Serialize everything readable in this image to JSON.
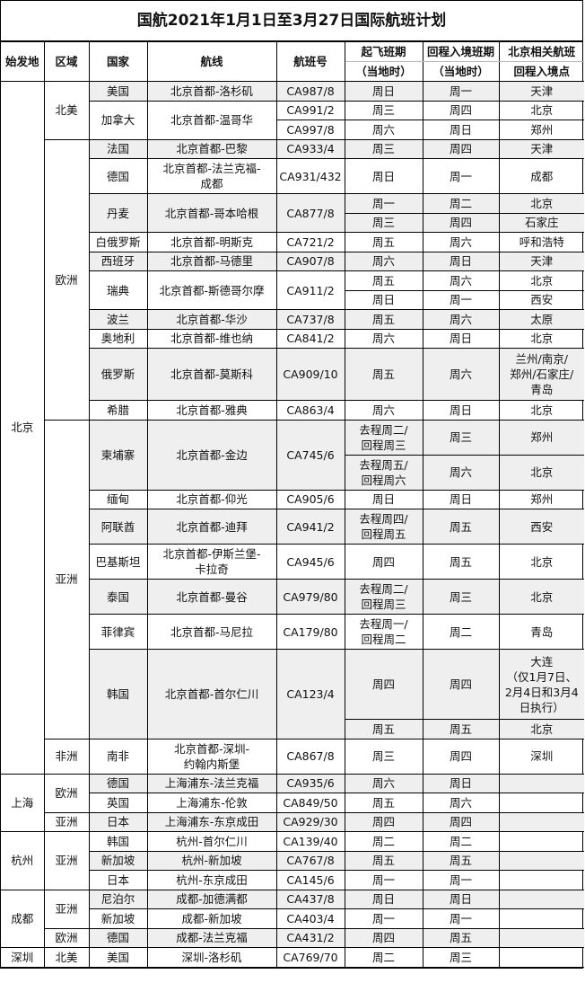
{
  "title": "国航2021年1月1日至3月27日国际航班计划",
  "colors": {
    "shade": "#efefef",
    "border": "#000000"
  },
  "headers": {
    "origin": "始发地",
    "region": "区域",
    "country": "国家",
    "route": "航线",
    "flight": "航班号",
    "depart_top": "起飞班期",
    "depart_bottom": "（当地时）",
    "return_top": "回程入境班期",
    "return_bottom": "（当地时）",
    "entry_top": "北京相关航班",
    "entry_bottom": "回程入境点"
  },
  "origins": [
    {
      "name": "北京",
      "regions": [
        {
          "name": "北美",
          "countries": [
            {
              "country": "美国",
              "route": "北京首都-洛杉矶",
              "flight": "CA987/8",
              "schedules": [
                {
                  "depart": "周日",
                  "return": "周一",
                  "entry": "天津"
                }
              ]
            },
            {
              "country": "加拿大",
              "route": "北京首都-温哥华",
              "schedules": [
                {
                  "flight": "CA991/2",
                  "depart": "周三",
                  "return": "周四",
                  "entry": "北京"
                },
                {
                  "flight": "CA997/8",
                  "depart": "周六",
                  "return": "周日",
                  "entry": "郑州"
                }
              ]
            }
          ]
        },
        {
          "name": "欧洲",
          "countries": [
            {
              "country": "法国",
              "route": "北京首都-巴黎",
              "flight": "CA933/4",
              "schedules": [
                {
                  "depart": "周三",
                  "return": "周四",
                  "entry": "天津"
                }
              ]
            },
            {
              "country": "德国",
              "route": "北京首都-法兰克福-\n成都",
              "flight": "CA931/432",
              "schedules": [
                {
                  "depart": "周日",
                  "return": "周一",
                  "entry": "成都"
                }
              ]
            },
            {
              "country": "丹麦",
              "route": "北京首都-哥本哈根",
              "flight": "CA877/8",
              "schedules": [
                {
                  "depart": "周一",
                  "return": "周二",
                  "entry": "北京"
                },
                {
                  "depart": "周三",
                  "return": "周四",
                  "entry": "石家庄"
                }
              ]
            },
            {
              "country": "白俄罗斯",
              "route": "北京首都-明斯克",
              "flight": "CA721/2",
              "schedules": [
                {
                  "depart": "周五",
                  "return": "周六",
                  "entry": "呼和浩特"
                }
              ]
            },
            {
              "country": "西班牙",
              "route": "北京首都-马德里",
              "flight": "CA907/8",
              "schedules": [
                {
                  "depart": "周六",
                  "return": "周日",
                  "entry": "天津"
                }
              ]
            },
            {
              "country": "瑞典",
              "route": "北京首都-斯德哥尔摩",
              "flight": "CA911/2",
              "schedules": [
                {
                  "depart": "周五",
                  "return": "周六",
                  "entry": "北京"
                },
                {
                  "depart": "周日",
                  "return": "周一",
                  "entry": "西安"
                }
              ]
            },
            {
              "country": "波兰",
              "route": "北京首都-华沙",
              "flight": "CA737/8",
              "schedules": [
                {
                  "depart": "周五",
                  "return": "周六",
                  "entry": "太原"
                }
              ]
            },
            {
              "country": "奥地利",
              "route": "北京首都-维也纳",
              "flight": "CA841/2",
              "schedules": [
                {
                  "depart": "周六",
                  "return": "周日",
                  "entry": "北京"
                }
              ]
            },
            {
              "country": "俄罗斯",
              "route": "北京首都-莫斯科",
              "flight": "CA909/10",
              "schedules": [
                {
                  "depart": "周五",
                  "return": "周六",
                  "entry": "兰州/南京/\n郑州/石家庄/\n青岛"
                }
              ]
            },
            {
              "country": "希腊",
              "route": "北京首都-雅典",
              "flight": "CA863/4",
              "schedules": [
                {
                  "depart": "周六",
                  "return": "周日",
                  "entry": "北京"
                }
              ]
            }
          ]
        },
        {
          "name": "亚洲",
          "countries": [
            {
              "country": "柬埔寨",
              "route": "北京首都-金边",
              "flight": "CA745/6",
              "schedules": [
                {
                  "depart": "去程周二/\n回程周三",
                  "return": "周三",
                  "entry": "郑州"
                },
                {
                  "depart": "去程周五/\n回程周六",
                  "return": "周六",
                  "entry": "北京"
                }
              ]
            },
            {
              "country": "缅甸",
              "route": "北京首都-仰光",
              "flight": "CA905/6",
              "schedules": [
                {
                  "depart": "周日",
                  "return": "周日",
                  "entry": "郑州"
                }
              ]
            },
            {
              "country": "阿联酋",
              "route": "北京首都-迪拜",
              "flight": "CA941/2",
              "schedules": [
                {
                  "depart": "去程周四/\n回程周五",
                  "return": "周五",
                  "entry": "西安"
                }
              ]
            },
            {
              "country": "巴基斯坦",
              "route": "北京首都-伊斯兰堡-\n卡拉奇",
              "flight": "CA945/6",
              "schedules": [
                {
                  "depart": "周四",
                  "return": "周五",
                  "entry": "北京"
                }
              ]
            },
            {
              "country": "泰国",
              "route": "北京首都-曼谷",
              "flight": "CA979/80",
              "schedules": [
                {
                  "depart": "去程周二/\n回程周三",
                  "return": "周三",
                  "entry": "北京"
                }
              ]
            },
            {
              "country": "菲律宾",
              "route": "北京首都-马尼拉",
              "flight": "CA179/80",
              "schedules": [
                {
                  "depart": "去程周一/\n回程周二",
                  "return": "周二",
                  "entry": "青岛"
                }
              ]
            },
            {
              "country": "韩国",
              "route": "北京首都-首尔仁川",
              "flight": "CA123/4",
              "schedules": [
                {
                  "depart": "周四",
                  "return": "周四",
                  "entry": "大连\n（仅1月7日、\n2月4日和3月4\n日执行）"
                },
                {
                  "depart": "周五",
                  "return": "周五",
                  "entry": "北京"
                }
              ]
            }
          ]
        },
        {
          "name": "非洲",
          "countries": [
            {
              "country": "南非",
              "route": "北京首都-深圳-\n约翰内斯堡",
              "flight": "CA867/8",
              "schedules": [
                {
                  "depart": "周三",
                  "return": "周四",
                  "entry": "深圳"
                }
              ]
            }
          ]
        }
      ]
    },
    {
      "name": "上海",
      "regions": [
        {
          "name": "欧洲",
          "countries": [
            {
              "country": "德国",
              "route": "上海浦东-法兰克福",
              "flight": "CA935/6",
              "schedules": [
                {
                  "depart": "周六",
                  "return": "周日",
                  "entry": ""
                }
              ]
            },
            {
              "country": "英国",
              "route": "上海浦东-伦敦",
              "flight": "CA849/50",
              "schedules": [
                {
                  "depart": "周五",
                  "return": "周六",
                  "entry": ""
                }
              ]
            }
          ]
        },
        {
          "name": "亚洲",
          "countries": [
            {
              "country": "日本",
              "route": "上海浦东-东京成田",
              "flight": "CA929/30",
              "schedules": [
                {
                  "depart": "周四",
                  "return": "周四",
                  "entry": ""
                }
              ]
            }
          ]
        }
      ]
    },
    {
      "name": "杭州",
      "regions": [
        {
          "name": "亚洲",
          "countries": [
            {
              "country": "韩国",
              "route": "杭州-首尔仁川",
              "flight": "CA139/40",
              "schedules": [
                {
                  "depart": "周二",
                  "return": "周二",
                  "entry": ""
                }
              ]
            },
            {
              "country": "新加坡",
              "route": "杭州-新加坡",
              "flight": "CA767/8",
              "schedules": [
                {
                  "depart": "周五",
                  "return": "周五",
                  "entry": ""
                }
              ]
            },
            {
              "country": "日本",
              "route": "杭州-东京成田",
              "flight": "CA145/6",
              "schedules": [
                {
                  "depart": "周一",
                  "return": "周一",
                  "entry": ""
                }
              ]
            }
          ]
        }
      ]
    },
    {
      "name": "成都",
      "regions": [
        {
          "name": "亚洲",
          "countries": [
            {
              "country": "尼泊尔",
              "route": "成都-加德满都",
              "flight": "CA437/8",
              "schedules": [
                {
                  "depart": "周日",
                  "return": "周日",
                  "entry": ""
                }
              ]
            },
            {
              "country": "新加坡",
              "route": "成都-新加坡",
              "flight": "CA403/4",
              "schedules": [
                {
                  "depart": "周一",
                  "return": "周一",
                  "entry": ""
                }
              ]
            }
          ]
        },
        {
          "name": "欧洲",
          "countries": [
            {
              "country": "德国",
              "route": "成都-法兰克福",
              "flight": "CA431/2",
              "schedules": [
                {
                  "depart": "周四",
                  "return": "周五",
                  "entry": ""
                }
              ]
            }
          ]
        }
      ]
    },
    {
      "name": "深圳",
      "regions": [
        {
          "name": "北美",
          "countries": [
            {
              "country": "美国",
              "route": "深圳-洛杉矶",
              "flight": "CA769/70",
              "schedules": [
                {
                  "depart": "周二",
                  "return": "周三",
                  "entry": ""
                }
              ]
            }
          ]
        }
      ]
    }
  ]
}
